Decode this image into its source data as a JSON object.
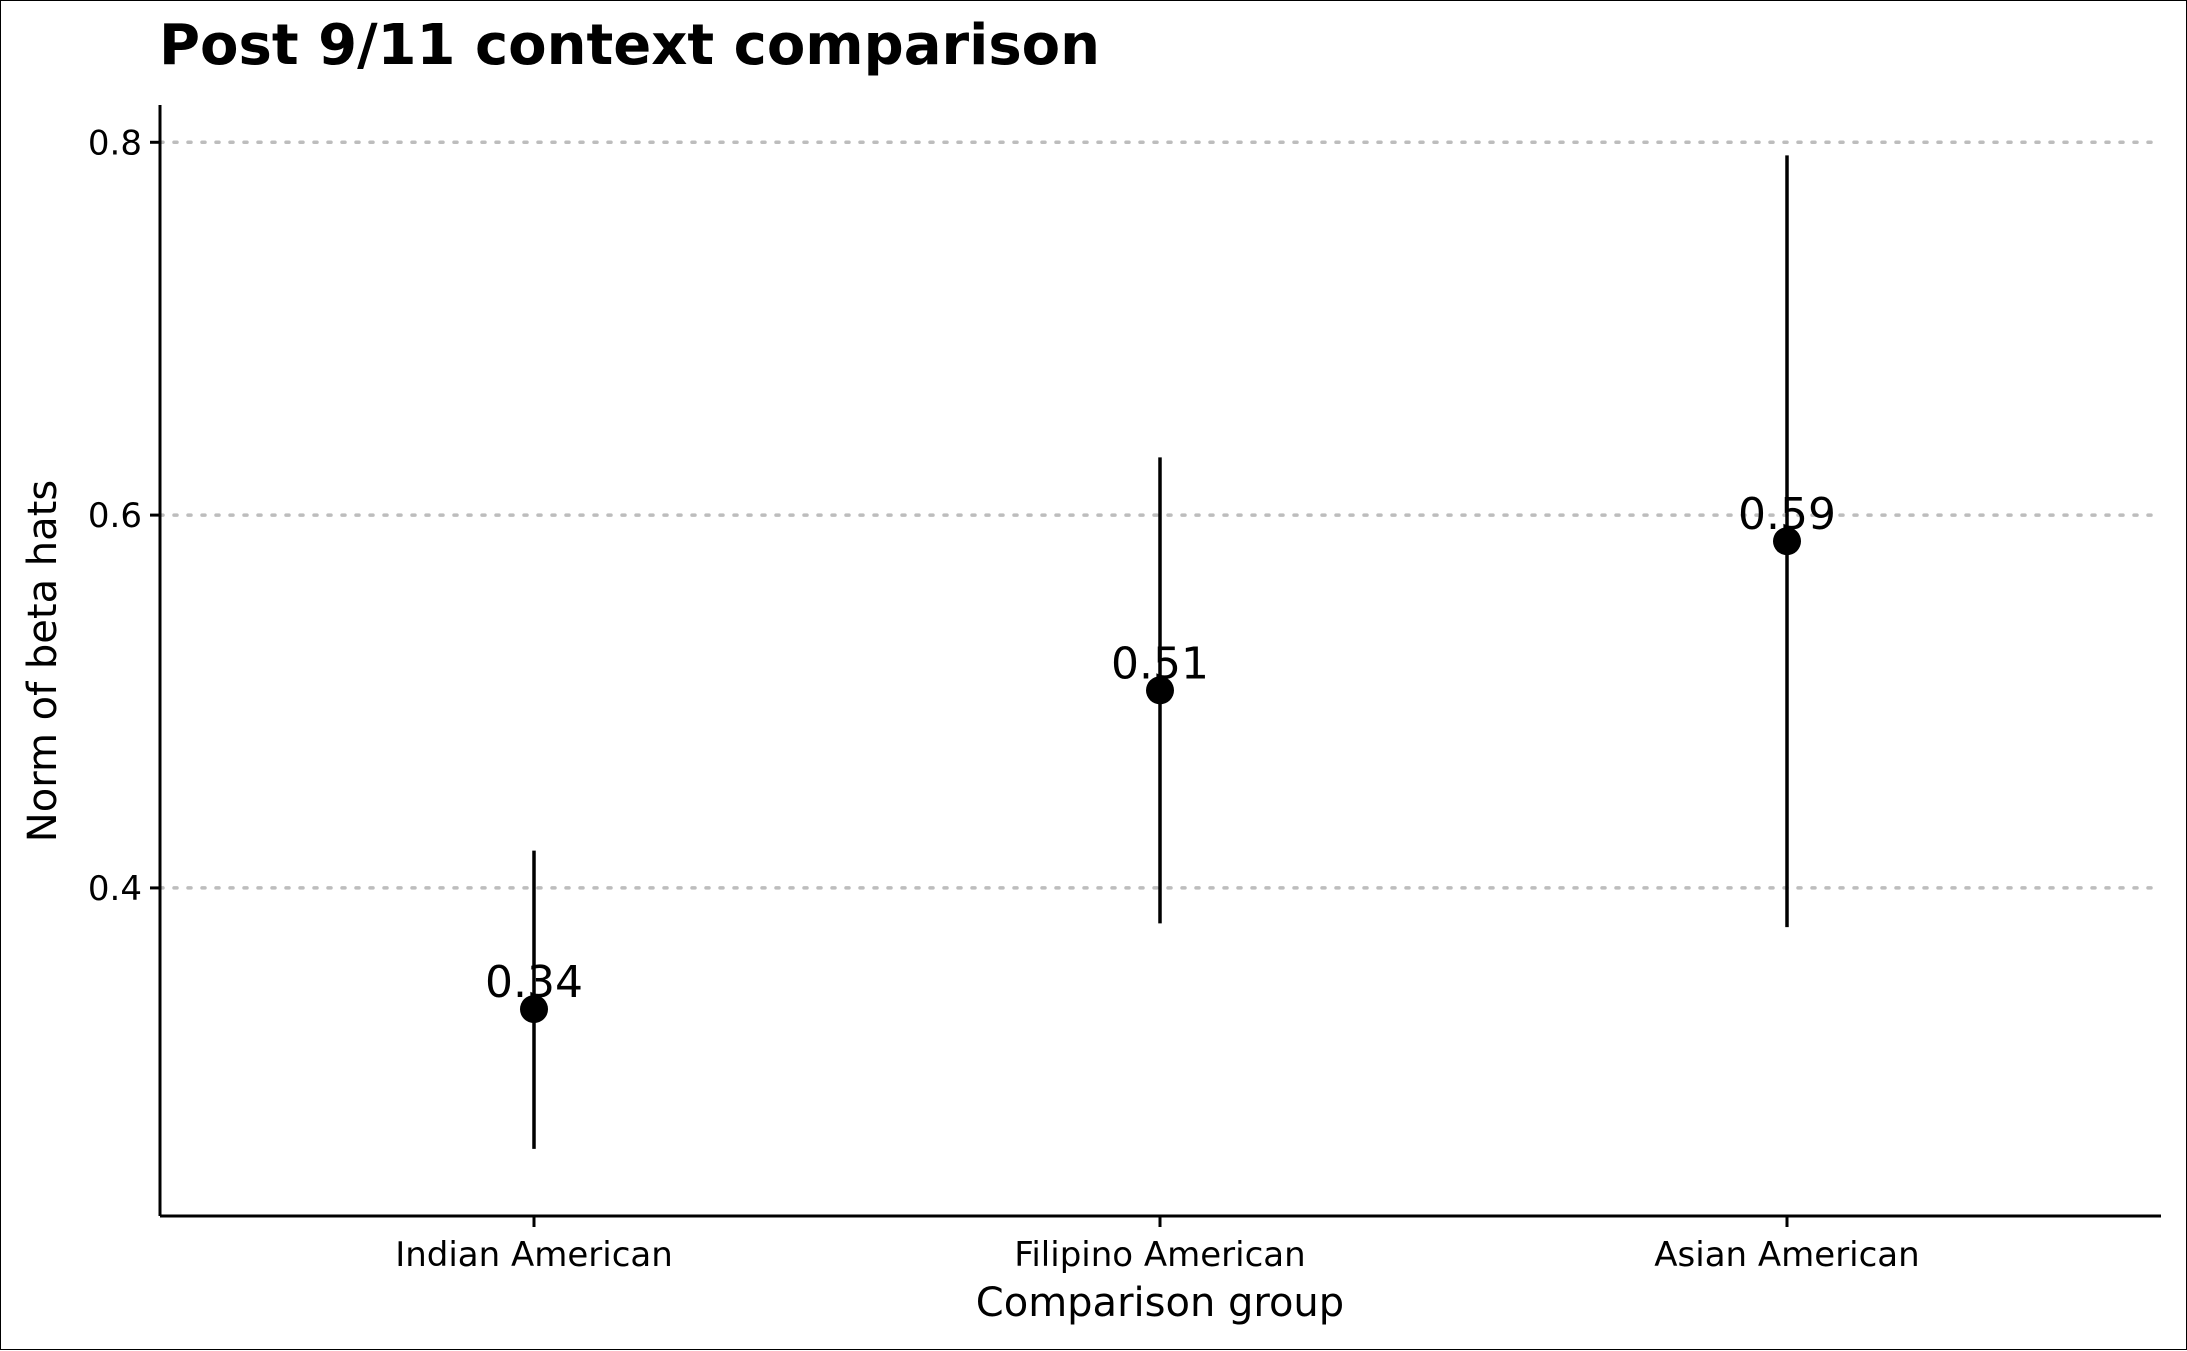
{
  "chart_data": {
    "type": "scatter",
    "title": "Post 9/11 context comparison",
    "xlabel": "Comparison group",
    "ylabel": "Norm of beta hats",
    "categories": [
      "Indian American",
      "Filipino American",
      "Asian American"
    ],
    "series": [
      {
        "values": [
          0.335,
          0.506,
          0.586
        ],
        "lower": [
          0.26,
          0.381,
          0.379
        ],
        "upper": [
          0.42,
          0.631,
          0.793
        ],
        "labels": [
          "0.34",
          "0.51",
          "0.59"
        ],
        "color": "#000000"
      }
    ],
    "ylim": [
      0.224,
      0.82
    ],
    "yticks": [
      0.4,
      0.6,
      0.8
    ],
    "ytick_labels": [
      "0.4",
      "0.6",
      "0.8"
    ],
    "grid": "horizontal dotted at major y ticks",
    "gridline_color": "#bdbdbd",
    "legend": "none"
  }
}
